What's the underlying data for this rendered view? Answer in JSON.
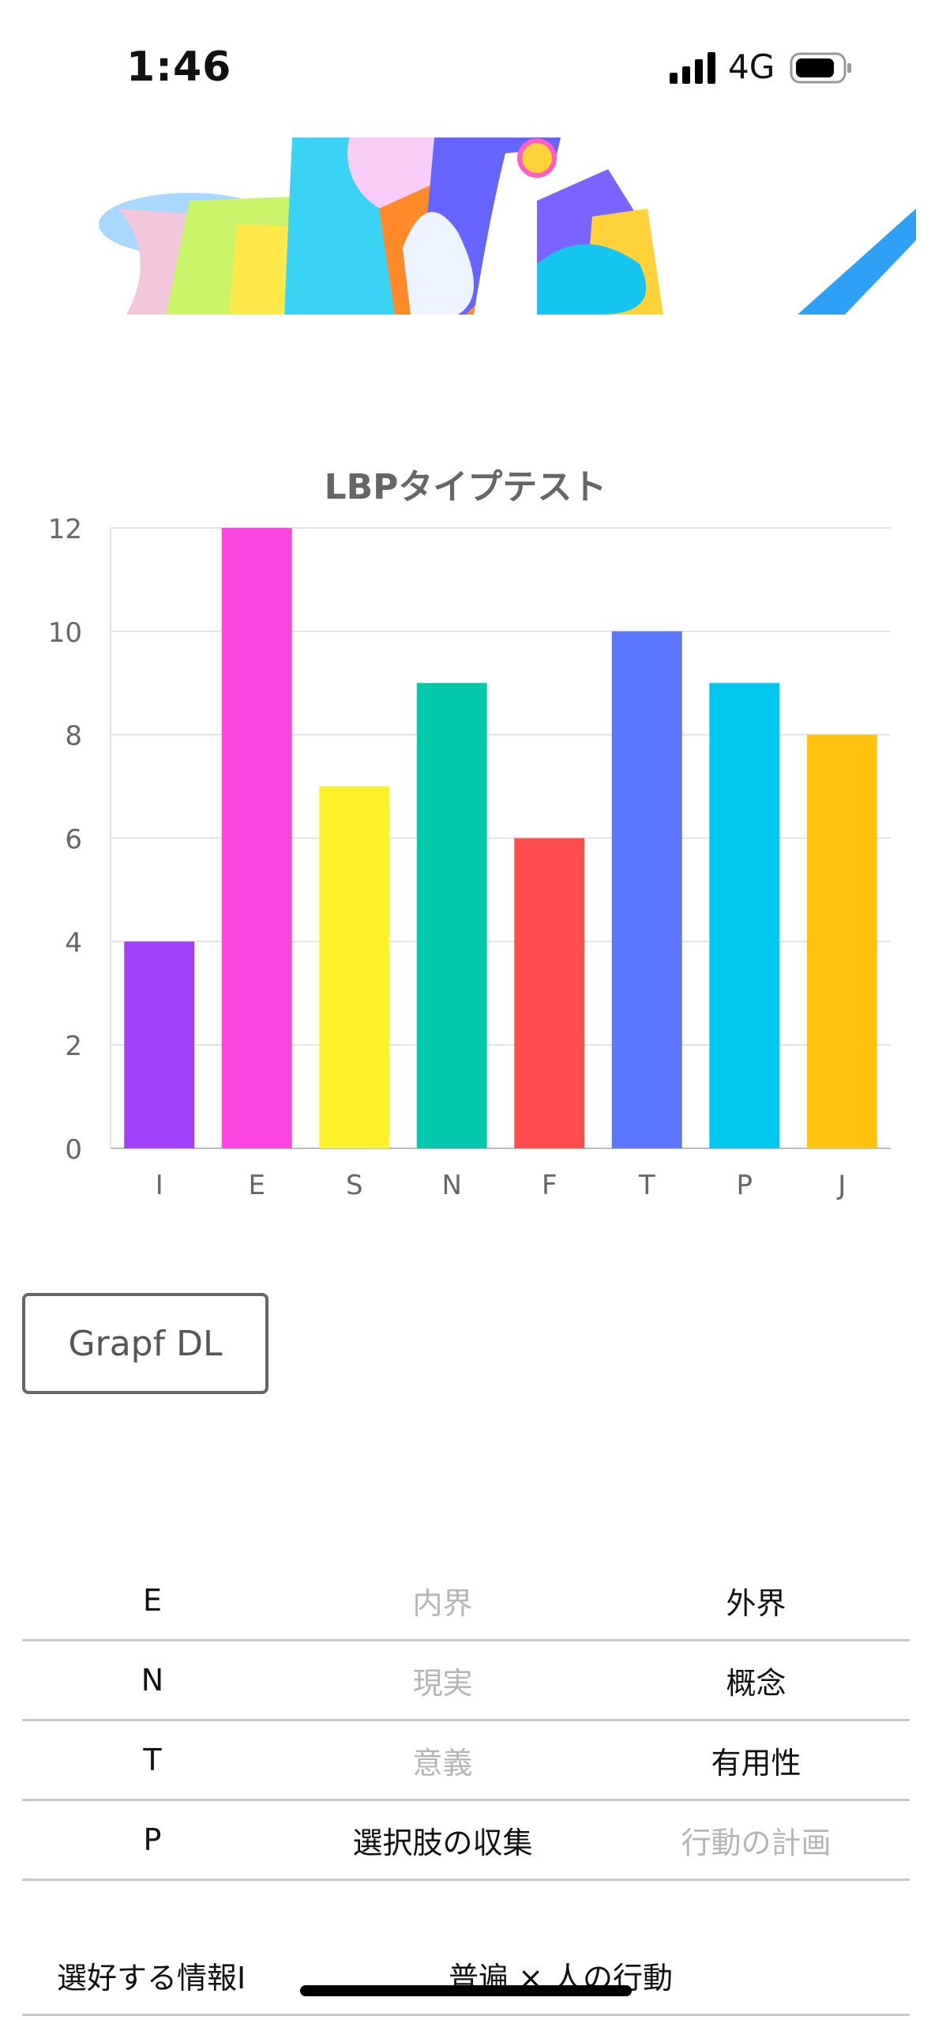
{
  "status": {
    "time": "1:46",
    "network": "4G"
  },
  "chart_data": {
    "type": "bar",
    "title": "LBPタイプテスト",
    "categories": [
      "I",
      "E",
      "S",
      "N",
      "F",
      "T",
      "P",
      "J"
    ],
    "values": [
      4,
      12,
      7,
      9,
      6,
      10,
      9,
      8
    ],
    "colors": [
      "#a23ffb",
      "#ff45e0",
      "#fff12a",
      "#03c8ac",
      "#ff4c4c",
      "#5b77ff",
      "#02c8ef",
      "#ffc310"
    ],
    "ylim": [
      0,
      12
    ],
    "yticks": [
      0,
      2,
      4,
      6,
      8,
      10,
      12
    ],
    "grid": true
  },
  "download_button": {
    "label": "Grapf DL"
  },
  "type_table": [
    {
      "letter": "E",
      "left": "内界",
      "right": "外界",
      "selected": "right"
    },
    {
      "letter": "N",
      "left": "現実",
      "right": "概念",
      "selected": "right"
    },
    {
      "letter": "T",
      "left": "意義",
      "right": "有用性",
      "selected": "right"
    },
    {
      "letter": "P",
      "left": "選択肢の収集",
      "right": "行動の計画",
      "selected": "left"
    }
  ],
  "preference": {
    "label": "選好する情報I",
    "value": "普遍 × 人の行動"
  }
}
